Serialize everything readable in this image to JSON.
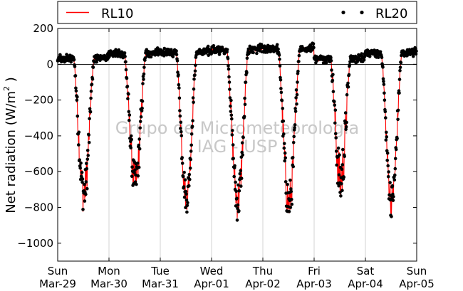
{
  "chart_data": {
    "type": "line",
    "title": "",
    "ylabel_main": "Net radiation (W/m",
    "ylabel_sup": "2",
    "ylabel_end": " )",
    "xlabel": "",
    "ylim": [
      -1100,
      200
    ],
    "yticks": [
      200,
      0,
      -200,
      -400,
      -600,
      -800,
      -1000
    ],
    "ytick_labels": [
      "200",
      "0",
      "−200",
      "−400",
      "−600",
      "−800",
      "−1000"
    ],
    "xlim": [
      0,
      7
    ],
    "xticks": [
      {
        "pos": 0,
        "day": "Sun",
        "date": "Mar-29"
      },
      {
        "pos": 1,
        "day": "Mon",
        "date": "Mar-30"
      },
      {
        "pos": 2,
        "day": "Tue",
        "date": "Mar-31"
      },
      {
        "pos": 3,
        "day": "Wed",
        "date": "Apr-01"
      },
      {
        "pos": 4,
        "day": "Thu",
        "date": "Apr-02"
      },
      {
        "pos": 5,
        "day": "Fri",
        "date": "Apr-03"
      },
      {
        "pos": 6,
        "day": "Sat",
        "date": "Apr-04"
      },
      {
        "pos": 7,
        "day": "Sun",
        "date": "Apr-05"
      }
    ],
    "grid": "vertical",
    "zero_line": true,
    "legend": {
      "placement": "top",
      "entries": [
        {
          "name": "RL10",
          "style": "line",
          "color": "#ff0000"
        },
        {
          "name": "RL20",
          "style": "dots",
          "color": "#000000"
        }
      ]
    },
    "watermark": [
      "Grupo de Micrometeorologia",
      "IAG - USP"
    ],
    "days": [
      {
        "rise": 0.31,
        "set": 0.71,
        "min": -720,
        "night": 30,
        "noise": 120
      },
      {
        "rise": 0.3,
        "set": 0.72,
        "min": -650,
        "night": 60,
        "noise": 110
      },
      {
        "rise": 0.31,
        "set": 0.71,
        "min": -740,
        "night": 65,
        "noise": 80
      },
      {
        "rise": 0.3,
        "set": 0.72,
        "min": -760,
        "night": 80,
        "noise": 110
      },
      {
        "rise": 0.3,
        "set": 0.72,
        "min": -780,
        "night": 85,
        "noise": 120
      },
      {
        "rise": 0.32,
        "set": 0.71,
        "min": -650,
        "night": 30,
        "noise": 150
      },
      {
        "rise": 0.31,
        "set": 0.71,
        "min": -760,
        "night": 60,
        "noise": 90
      }
    ],
    "series": [
      {
        "name": "RL10",
        "color": "#ff0000",
        "style": "line"
      },
      {
        "name": "RL20",
        "color": "#000000",
        "style": "dots"
      }
    ]
  }
}
